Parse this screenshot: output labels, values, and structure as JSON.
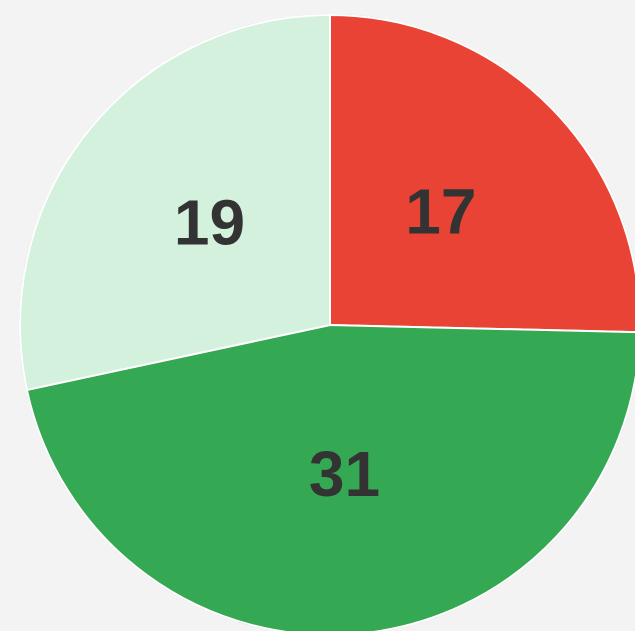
{
  "chart_data": {
    "type": "pie",
    "values": [
      17,
      31,
      19
    ],
    "colors": [
      "#e94335",
      "#34a853",
      "#d3f1dc"
    ]
  }
}
